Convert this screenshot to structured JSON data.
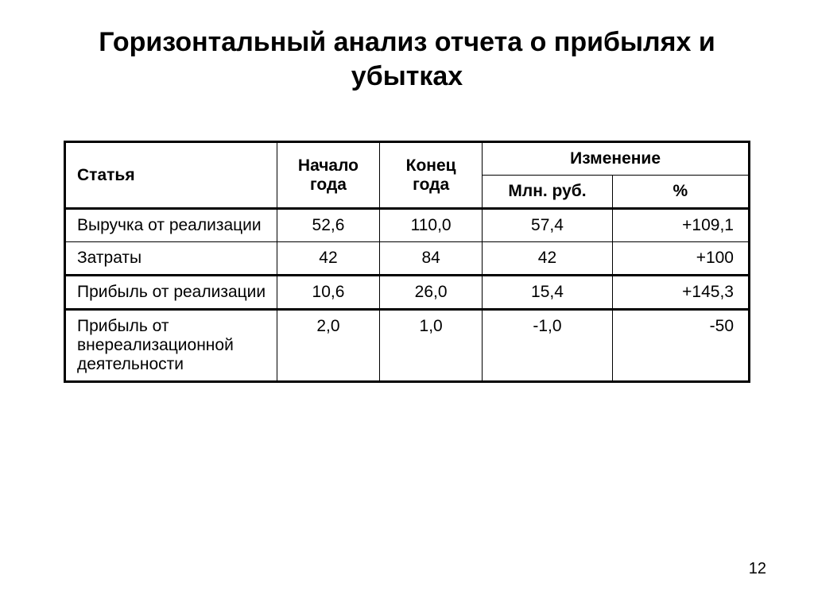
{
  "title": "Горизонтальный анализ отчета о прибылях и убытках",
  "pageNumber": "12",
  "table": {
    "headers": {
      "article": "Статья",
      "startYear": "Начало года",
      "endYear": "Конец года",
      "change": "Изменение",
      "changeAbs": "Млн. руб.",
      "changePct": "%"
    },
    "rows": [
      {
        "article": "Выручка от реализации",
        "start": "52,6",
        "end": "110,0",
        "changeAbs": "57,4",
        "changePct": "+109,1"
      },
      {
        "article": "Затраты",
        "start": "42",
        "end": "84",
        "changeAbs": "42",
        "changePct": "+100"
      },
      {
        "article": "Прибыль от реализации",
        "start": "10,6",
        "end": "26,0",
        "changeAbs": "15,4",
        "changePct": "+145,3"
      },
      {
        "article": "Прибыль от внереализационной деятельности",
        "start": "2,0",
        "end": "1,0",
        "changeAbs": "-1,0",
        "changePct": "-50"
      }
    ],
    "style": {
      "border_color": "#000000",
      "outer_border_width": 3,
      "inner_border_width": 1,
      "background_color": "#ffffff",
      "text_color": "#000000",
      "header_fontsize": 21,
      "cell_fontsize": 21,
      "header_fontweight": "bold",
      "title_fontsize": 34,
      "title_fontweight": "bold",
      "font_family": "Arial",
      "column_widths_pct": [
        31,
        15,
        15,
        19,
        20
      ],
      "column_alignment": [
        "left",
        "center",
        "center",
        "center",
        "right"
      ]
    }
  }
}
